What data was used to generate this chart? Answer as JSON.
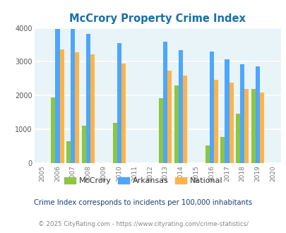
{
  "title": "McCrory Property Crime Index",
  "years": [
    2006,
    2007,
    2008,
    2010,
    2013,
    2014,
    2016,
    2017,
    2018,
    2019
  ],
  "mccrory": [
    1950,
    650,
    1100,
    1200,
    1920,
    2300,
    530,
    780,
    1470,
    2200
  ],
  "arkansas": [
    3980,
    3980,
    3830,
    3550,
    3590,
    3350,
    3300,
    3080,
    2920,
    2870
  ],
  "national": [
    3370,
    3280,
    3220,
    2950,
    2730,
    2600,
    2470,
    2390,
    2190,
    2100
  ],
  "all_years": [
    2005,
    2006,
    2007,
    2008,
    2009,
    2010,
    2011,
    2012,
    2013,
    2014,
    2015,
    2016,
    2017,
    2018,
    2019,
    2020
  ],
  "ylim": [
    0,
    4000
  ],
  "yticks": [
    0,
    1000,
    2000,
    3000,
    4000
  ],
  "bar_width": 0.28,
  "color_mccrory": "#8dc63f",
  "color_arkansas": "#4da6ff",
  "color_national": "#ffb347",
  "bg_color": "#e8f4f8",
  "grid_color": "#ffffff",
  "title_color": "#1a6fa8",
  "subtitle": "Crime Index corresponds to incidents per 100,000 inhabitants",
  "footer": "© 2025 CityRating.com - https://www.cityrating.com/crime-statistics/",
  "subtitle_color": "#1a3f6f",
  "footer_color": "#888888",
  "legend_text_color": "#333333"
}
